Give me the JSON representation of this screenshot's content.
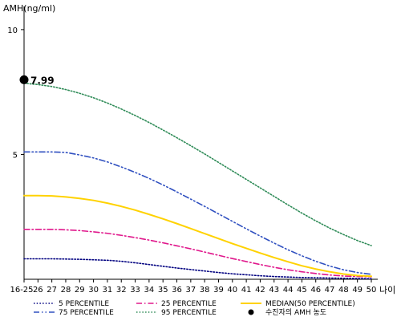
{
  "chart_data": {
    "type": "line",
    "ylabel": "AMH(ng/ml)",
    "xlabel": "나이",
    "x": [
      25,
      26,
      27,
      28,
      29,
      30,
      31,
      32,
      33,
      34,
      35,
      36,
      37,
      38,
      39,
      40,
      41,
      42,
      43,
      44,
      45,
      46,
      47,
      48,
      49,
      50
    ],
    "x_tick_labels": [
      "16-25",
      "26",
      "27",
      "28",
      "29",
      "30",
      "31",
      "32",
      "33",
      "34",
      "35",
      "36",
      "37",
      "38",
      "39",
      "40",
      "41",
      "42",
      "43",
      "44",
      "45",
      "46",
      "47",
      "48",
      "49",
      "50"
    ],
    "ylim": [
      0,
      10.8
    ],
    "y_ticks": [
      5,
      10
    ],
    "grid": false,
    "legend_position": "bottom",
    "series": [
      {
        "name": "5 PERCENTILE",
        "color": "#000080",
        "style": "dotted",
        "values": [
          0.82,
          0.82,
          0.82,
          0.81,
          0.8,
          0.78,
          0.76,
          0.72,
          0.66,
          0.59,
          0.52,
          0.45,
          0.39,
          0.33,
          0.27,
          0.22,
          0.18,
          0.14,
          0.11,
          0.09,
          0.07,
          0.06,
          0.05,
          0.04,
          0.03,
          0.02
        ]
      },
      {
        "name": "25 PERCENTILE",
        "color": "#e0188c",
        "style": "dashdot",
        "values": [
          2.0,
          2.0,
          2.0,
          1.98,
          1.95,
          1.9,
          1.84,
          1.76,
          1.67,
          1.57,
          1.46,
          1.34,
          1.22,
          1.09,
          0.96,
          0.83,
          0.71,
          0.59,
          0.48,
          0.38,
          0.3,
          0.23,
          0.17,
          0.13,
          0.11,
          0.1
        ]
      },
      {
        "name": "MEDIAN(50 PERCENTILE)",
        "color": "#ffd200",
        "style": "solid",
        "values": [
          3.35,
          3.35,
          3.34,
          3.3,
          3.24,
          3.16,
          3.05,
          2.92,
          2.77,
          2.6,
          2.42,
          2.23,
          2.03,
          1.83,
          1.63,
          1.43,
          1.24,
          1.05,
          0.87,
          0.7,
          0.54,
          0.41,
          0.3,
          0.21,
          0.15,
          0.12
        ]
      },
      {
        "name": "75 PERCENTILE",
        "color": "#3050c0",
        "style": "dashdotdot",
        "values": [
          5.1,
          5.1,
          5.1,
          5.08,
          4.98,
          4.86,
          4.7,
          4.5,
          4.28,
          4.04,
          3.78,
          3.5,
          3.21,
          2.92,
          2.62,
          2.32,
          2.02,
          1.73,
          1.45,
          1.18,
          0.94,
          0.72,
          0.53,
          0.38,
          0.27,
          0.2
        ]
      },
      {
        "name": "95 PERCENTILE",
        "color": "#2e8b57",
        "style": "dotted",
        "values": [
          7.85,
          7.8,
          7.72,
          7.6,
          7.45,
          7.27,
          7.06,
          6.82,
          6.56,
          6.28,
          5.98,
          5.67,
          5.35,
          5.02,
          4.68,
          4.34,
          4.0,
          3.66,
          3.32,
          2.98,
          2.65,
          2.34,
          2.05,
          1.79,
          1.55,
          1.35
        ]
      }
    ],
    "annotations": [
      {
        "x": 25,
        "y": 7.99,
        "label": "7.99",
        "marker": "circle",
        "color": "#000000",
        "legend": "수진자의 AMH 농도"
      }
    ]
  }
}
